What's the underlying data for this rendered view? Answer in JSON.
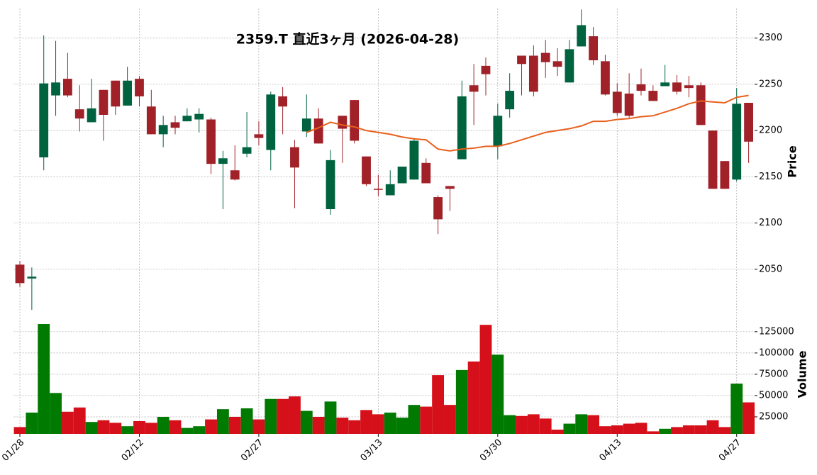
{
  "chart_data": {
    "type": "candlestick",
    "title": "2359.T  直近3ヶ月  (2026-04-28)",
    "ylabel": "Price",
    "volume_label": "Volume",
    "categories": [
      "01/28",
      null,
      null,
      null,
      null,
      null,
      null,
      null,
      null,
      null,
      "02/12",
      null,
      null,
      null,
      null,
      null,
      null,
      null,
      null,
      null,
      "02/27",
      null,
      null,
      null,
      null,
      null,
      null,
      null,
      null,
      null,
      "03/13",
      null,
      null,
      null,
      null,
      null,
      null,
      null,
      null,
      null,
      "03/30",
      null,
      null,
      null,
      null,
      null,
      null,
      null,
      null,
      null,
      "04/13",
      null,
      null,
      null,
      null,
      null,
      null,
      null,
      null,
      null,
      "04/27",
      null
    ],
    "open": [
      2055,
      2040,
      2171,
      2238,
      2256,
      2223,
      2209,
      2244,
      2254,
      2227,
      2256,
      2226,
      2196,
      2209,
      2210,
      2212,
      2212,
      2164,
      2157,
      2175,
      2196,
      2179,
      2237,
      2182,
      2199,
      2213,
      2115,
      2216,
      2233,
      2172,
      2137,
      2130,
      2143,
      2147,
      2165,
      2128,
      2140,
      2169,
      2249,
      2270,
      2183,
      2223,
      2281,
      2281,
      2284,
      2275,
      2252,
      2291,
      2302,
      2275,
      2242,
      2240,
      2250,
      2243,
      2248,
      2252,
      2249,
      2249,
      2200,
      2167,
      2147,
      2230
    ],
    "high": [
      2059,
      2052,
      2303,
      2297,
      2284,
      2249,
      2256,
      2244,
      2254,
      2269,
      2259,
      2244,
      2216,
      2216,
      2224,
      2224,
      2214,
      2178,
      2184,
      2220,
      2210,
      2242,
      2247,
      2190,
      2239,
      2224,
      2179,
      2216,
      2233,
      2172,
      2152,
      2157,
      2161,
      2192,
      2170,
      2130,
      2140,
      2254,
      2272,
      2279,
      2229,
      2262,
      2281,
      2292,
      2298,
      2289,
      2298,
      2331,
      2312,
      2282,
      2251,
      2262,
      2267,
      2249,
      2271,
      2260,
      2259,
      2252,
      2200,
      2167,
      2246,
      2230
    ],
    "low": [
      2031,
      2006,
      2157,
      2216,
      2236,
      2199,
      2209,
      2189,
      2217,
      2227,
      2226,
      2196,
      2182,
      2196,
      2210,
      2198,
      2153,
      2115,
      2146,
      2171,
      2184,
      2157,
      2196,
      2116,
      2193,
      2186,
      2109,
      2165,
      2186,
      2140,
      2129,
      2130,
      2143,
      2147,
      2143,
      2088,
      2113,
      2169,
      2206,
      2238,
      2169,
      2214,
      2238,
      2237,
      2257,
      2259,
      2252,
      2291,
      2271,
      2238,
      2216,
      2214,
      2238,
      2232,
      2248,
      2239,
      2236,
      2206,
      2137,
      2137,
      2145,
      2165
    ],
    "close": [
      2035,
      2042,
      2251,
      2252,
      2238,
      2213,
      2224,
      2217,
      2226,
      2254,
      2237,
      2196,
      2206,
      2203,
      2216,
      2218,
      2164,
      2170,
      2147,
      2182,
      2192,
      2239,
      2226,
      2160,
      2213,
      2186,
      2168,
      2202,
      2189,
      2142,
      2136,
      2142,
      2161,
      2189,
      2143,
      2104,
      2137,
      2237,
      2242,
      2261,
      2216,
      2243,
      2272,
      2242,
      2274,
      2269,
      2288,
      2314,
      2276,
      2239,
      2219,
      2216,
      2243,
      2232,
      2252,
      2242,
      2246,
      2206,
      2137,
      2137,
      2229,
      2188
    ],
    "volume": [
      13000,
      30000,
      134000,
      53000,
      31000,
      36000,
      19000,
      21000,
      18000,
      14000,
      20000,
      18000,
      25000,
      21000,
      12000,
      14000,
      22000,
      34000,
      25000,
      35000,
      22000,
      46000,
      46000,
      49000,
      32000,
      25000,
      43000,
      24000,
      21000,
      33000,
      28000,
      30000,
      24000,
      39000,
      37000,
      74000,
      39000,
      80000,
      90000,
      133000,
      98000,
      27000,
      26000,
      28000,
      23000,
      10000,
      17000,
      28000,
      27000,
      14000,
      15000,
      17000,
      18000,
      8000,
      11000,
      13000,
      15000,
      15000,
      21000,
      13000,
      64000,
      42000
    ],
    "moving_average": [
      null,
      null,
      null,
      null,
      null,
      null,
      null,
      null,
      null,
      null,
      null,
      null,
      null,
      null,
      null,
      null,
      null,
      null,
      null,
      null,
      null,
      null,
      null,
      null,
      2198,
      2203,
      2209,
      2206,
      2204,
      2200,
      2198,
      2196,
      2193,
      2191,
      2190,
      2180,
      2178,
      2180,
      2181,
      2183,
      2183,
      2186,
      2190,
      2194,
      2198,
      2200,
      2202,
      2205,
      2210,
      2210,
      2212,
      2213,
      2215,
      2216,
      2220,
      2224,
      2229,
      2232,
      2231,
      2230,
      2236,
      2238
    ],
    "ylim": [
      2000,
      2332
    ],
    "yticks": [
      2050,
      2100,
      2150,
      2200,
      2250,
      2300
    ],
    "volume_ylim": [
      5000,
      144000
    ],
    "volume_yticks": [
      25000,
      50000,
      75000,
      100000,
      125000
    ],
    "up_color": "#006340",
    "down_color": "#a02128",
    "volume_up_color": "#007a00",
    "volume_down_color": "#d5101a",
    "ma_color": "#e8601c",
    "grid": true
  }
}
